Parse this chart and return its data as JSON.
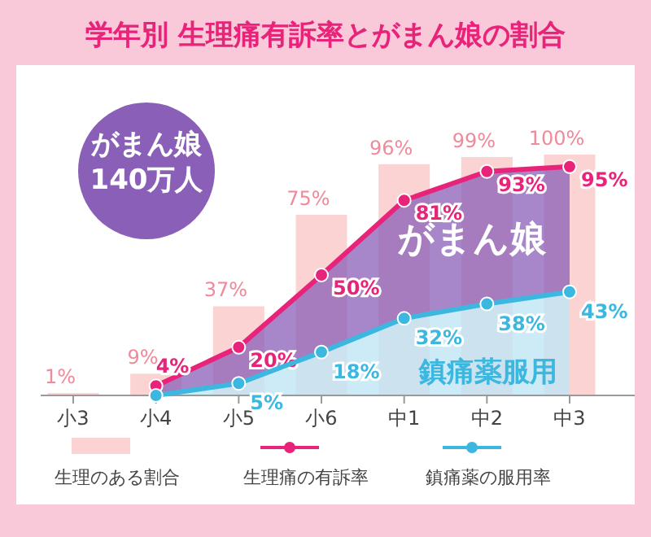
{
  "chart_data": {
    "type": "bar",
    "title": "学年別 生理痛有訴率とがまん娘の割合",
    "categories": [
      "小3",
      "小4",
      "小5",
      "小6",
      "中1",
      "中2",
      "中3"
    ],
    "series": [
      {
        "name": "生理のある割合",
        "color": "#fcd3d3",
        "values": [
          1,
          9,
          37,
          75,
          96,
          99,
          100
        ],
        "value_labels": [
          "1%",
          "9%",
          "37%",
          "75%",
          "96%",
          "99%",
          "100%"
        ]
      },
      {
        "name": "生理痛の有訴率",
        "type": "line",
        "color": "#e8237a",
        "values": [
          null,
          4,
          20,
          50,
          81,
          93,
          95
        ],
        "value_labels": [
          null,
          "4%",
          "20%",
          "50%",
          "81%",
          "93%",
          "95%"
        ]
      },
      {
        "name": "鎮痛薬の服用率",
        "type": "line",
        "color": "#3cb8e0",
        "values": [
          null,
          0,
          5,
          18,
          32,
          38,
          43
        ],
        "value_labels": [
          null,
          null,
          "5%",
          "18%",
          "32%",
          "38%",
          "43%"
        ]
      }
    ],
    "marker": "circle",
    "legend": "bottom",
    "annotations": [
      "がまん娘\n140万人",
      "がまん娘",
      "鎮痛薬服用"
    ]
  }
}
